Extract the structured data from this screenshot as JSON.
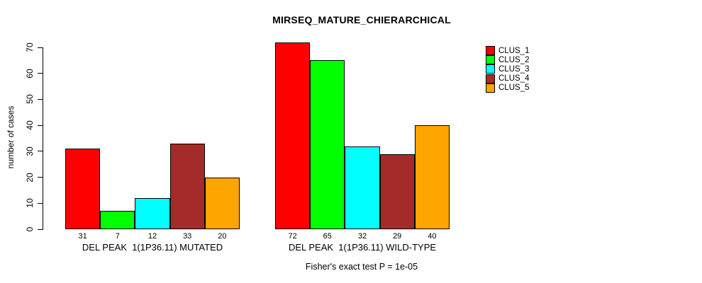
{
  "title": "MIRSEQ_MATURE_CHIERARCHICAL",
  "caption": "Fisher's exact test P = 1e-05",
  "chart_data": {
    "type": "bar",
    "subtype": "grouped",
    "title": "MIRSEQ_MATURE_CHIERARCHICAL",
    "xlabel": "",
    "ylabel": "number of cases",
    "ylim": [
      0,
      70
    ],
    "yticks": [
      0,
      10,
      20,
      30,
      40,
      50,
      60,
      70
    ],
    "grid": false,
    "legend_position": "right",
    "categories": [
      "DEL PEAK  1(1P36.11) MUTATED",
      "DEL PEAK  1(1P36.11) WILD-TYPE"
    ],
    "series": [
      {
        "name": "CLUS_1",
        "color": "#FF0000",
        "values": [
          31,
          72
        ]
      },
      {
        "name": "CLUS_2",
        "color": "#00FF00",
        "values": [
          7,
          65
        ]
      },
      {
        "name": "CLUS_3",
        "color": "#00FFFF",
        "values": [
          12,
          32
        ]
      },
      {
        "name": "CLUS_4",
        "color": "#A52A2A",
        "values": [
          33,
          29
        ]
      },
      {
        "name": "CLUS_5",
        "color": "#FFA500",
        "values": [
          20,
          40
        ]
      }
    ],
    "bar_value_labels": [
      [
        31,
        7,
        12,
        33,
        20
      ],
      [
        72,
        65,
        32,
        29,
        40
      ]
    ],
    "annotation": "Fisher's exact test P = 1e-05"
  },
  "colors": {
    "background": "#FFFFFF",
    "axis": "#000000",
    "text": "#000000"
  }
}
